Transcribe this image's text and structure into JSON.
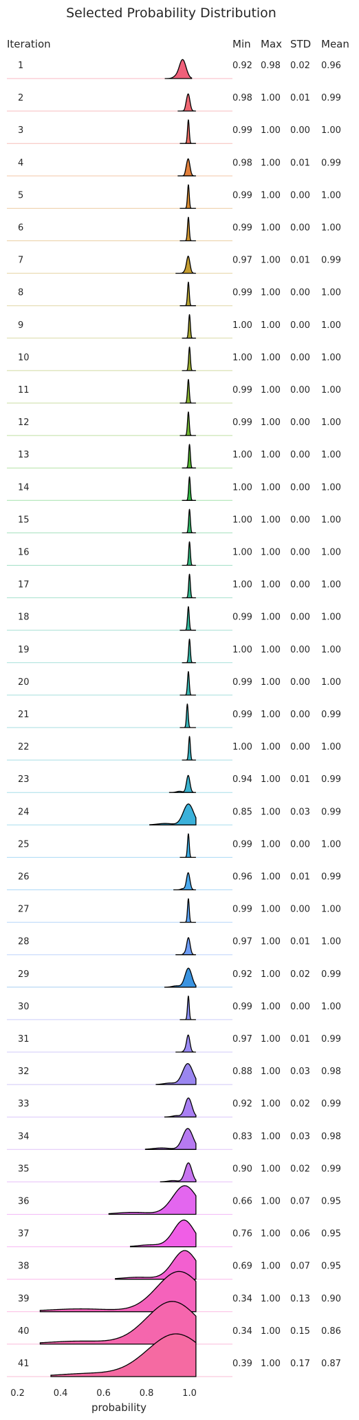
{
  "chart_data": {
    "type": "ridgeline",
    "title": "Selected Probability Distribution",
    "xlabel": "probability",
    "xlim": [
      0.15,
      1.2
    ],
    "x_ticks": [
      0.2,
      0.4,
      0.6,
      0.8,
      1.0
    ],
    "x_tick_labels": [
      "0.2",
      "0.4",
      "0.6",
      "0.8",
      "1.0"
    ],
    "columns": [
      "Iteration",
      "Min",
      "Max",
      "STD",
      "Mean"
    ],
    "grid": false,
    "rows": [
      {
        "iteration": "1",
        "min": "0.92",
        "max": "0.98",
        "std": "0.02",
        "mean": "0.96",
        "color": "#f0607a"
      },
      {
        "iteration": "2",
        "min": "0.98",
        "max": "1.00",
        "std": "0.01",
        "mean": "0.99",
        "color": "#ef6672"
      },
      {
        "iteration": "3",
        "min": "0.99",
        "max": "1.00",
        "std": "0.00",
        "mean": "1.00",
        "color": "#ec6c62"
      },
      {
        "iteration": "4",
        "min": "0.98",
        "max": "1.00",
        "std": "0.01",
        "mean": "0.99",
        "color": "#e2803c"
      },
      {
        "iteration": "5",
        "min": "0.99",
        "max": "1.00",
        "std": "0.00",
        "mean": "1.00",
        "color": "#d98c32"
      },
      {
        "iteration": "6",
        "min": "0.99",
        "max": "1.00",
        "std": "0.00",
        "mean": "1.00",
        "color": "#cf9532"
      },
      {
        "iteration": "7",
        "min": "0.97",
        "max": "1.00",
        "std": "0.01",
        "mean": "0.99",
        "color": "#c49d31"
      },
      {
        "iteration": "8",
        "min": "0.99",
        "max": "1.00",
        "std": "0.00",
        "mean": "1.00",
        "color": "#b8a431"
      },
      {
        "iteration": "9",
        "min": "1.00",
        "max": "1.00",
        "std": "0.00",
        "mean": "1.00",
        "color": "#aaa931"
      },
      {
        "iteration": "10",
        "min": "1.00",
        "max": "1.00",
        "std": "0.00",
        "mean": "1.00",
        "color": "#9aae31"
      },
      {
        "iteration": "11",
        "min": "0.99",
        "max": "1.00",
        "std": "0.00",
        "mean": "1.00",
        "color": "#88b331"
      },
      {
        "iteration": "12",
        "min": "0.99",
        "max": "1.00",
        "std": "0.00",
        "mean": "1.00",
        "color": "#72b731"
      },
      {
        "iteration": "13",
        "min": "1.00",
        "max": "1.00",
        "std": "0.00",
        "mean": "1.00",
        "color": "#55bb31"
      },
      {
        "iteration": "14",
        "min": "1.00",
        "max": "1.00",
        "std": "0.00",
        "mean": "1.00",
        "color": "#34bd47"
      },
      {
        "iteration": "15",
        "min": "1.00",
        "max": "1.00",
        "std": "0.00",
        "mean": "1.00",
        "color": "#33bc6a"
      },
      {
        "iteration": "16",
        "min": "1.00",
        "max": "1.00",
        "std": "0.00",
        "mean": "1.00",
        "color": "#34bb80"
      },
      {
        "iteration": "17",
        "min": "1.00",
        "max": "1.00",
        "std": "0.00",
        "mean": "1.00",
        "color": "#35ba90"
      },
      {
        "iteration": "18",
        "min": "0.99",
        "max": "1.00",
        "std": "0.00",
        "mean": "1.00",
        "color": "#35b99d"
      },
      {
        "iteration": "19",
        "min": "1.00",
        "max": "1.00",
        "std": "0.00",
        "mean": "1.00",
        "color": "#36b8a8"
      },
      {
        "iteration": "20",
        "min": "0.99",
        "max": "1.00",
        "std": "0.00",
        "mean": "1.00",
        "color": "#37b7b2"
      },
      {
        "iteration": "21",
        "min": "0.99",
        "max": "1.00",
        "std": "0.00",
        "mean": "0.99",
        "color": "#38b6bb"
      },
      {
        "iteration": "22",
        "min": "1.00",
        "max": "1.00",
        "std": "0.00",
        "mean": "1.00",
        "color": "#39b5c5"
      },
      {
        "iteration": "23",
        "min": "0.94",
        "max": "1.00",
        "std": "0.01",
        "mean": "0.99",
        "color": "#3ab3cf"
      },
      {
        "iteration": "24",
        "min": "0.85",
        "max": "1.00",
        "std": "0.03",
        "mean": "0.99",
        "color": "#3bb1da"
      },
      {
        "iteration": "25",
        "min": "0.99",
        "max": "1.00",
        "std": "0.00",
        "mean": "1.00",
        "color": "#3daee6"
      },
      {
        "iteration": "26",
        "min": "0.96",
        "max": "1.00",
        "std": "0.01",
        "mean": "0.99",
        "color": "#4aa9ee"
      },
      {
        "iteration": "27",
        "min": "0.99",
        "max": "1.00",
        "std": "0.00",
        "mean": "1.00",
        "color": "#5ca3f2"
      },
      {
        "iteration": "28",
        "min": "0.97",
        "max": "1.00",
        "std": "0.01",
        "mean": "1.00",
        "color": "#6d9cf4"
      },
      {
        "iteration": "29",
        "min": "0.92",
        "max": "1.00",
        "std": "0.02",
        "mean": "0.99",
        "color": "#3a93e0"
      },
      {
        "iteration": "30",
        "min": "0.99",
        "max": "1.00",
        "std": "0.00",
        "mean": "1.00",
        "color": "#8b91f5"
      },
      {
        "iteration": "31",
        "min": "0.97",
        "max": "1.00",
        "std": "0.01",
        "mean": "0.99",
        "color": "#9a8af5"
      },
      {
        "iteration": "32",
        "min": "0.88",
        "max": "1.00",
        "std": "0.03",
        "mean": "0.98",
        "color": "#9a86f0"
      },
      {
        "iteration": "33",
        "min": "0.92",
        "max": "1.00",
        "std": "0.02",
        "mean": "0.99",
        "color": "#a97ff3"
      },
      {
        "iteration": "34",
        "min": "0.83",
        "max": "1.00",
        "std": "0.03",
        "mean": "0.98",
        "color": "#b77af1"
      },
      {
        "iteration": "35",
        "min": "0.90",
        "max": "1.00",
        "std": "0.02",
        "mean": "0.99",
        "color": "#c774ef"
      },
      {
        "iteration": "36",
        "min": "0.66",
        "max": "1.00",
        "std": "0.07",
        "mean": "0.95",
        "color": "#e366ef"
      },
      {
        "iteration": "37",
        "min": "0.76",
        "max": "1.00",
        "std": "0.06",
        "mean": "0.95",
        "color": "#f05ee6"
      },
      {
        "iteration": "38",
        "min": "0.69",
        "max": "1.00",
        "std": "0.07",
        "mean": "0.95",
        "color": "#f35fd0"
      },
      {
        "iteration": "39",
        "min": "0.34",
        "max": "1.00",
        "std": "0.13",
        "mean": "0.90",
        "color": "#f562bb"
      },
      {
        "iteration": "40",
        "min": "0.34",
        "max": "1.00",
        "std": "0.15",
        "mean": "0.86",
        "color": "#f566ad"
      },
      {
        "iteration": "41",
        "min": "0.39",
        "max": "1.00",
        "std": "0.17",
        "mean": "0.87",
        "color": "#f56aa2"
      }
    ]
  }
}
